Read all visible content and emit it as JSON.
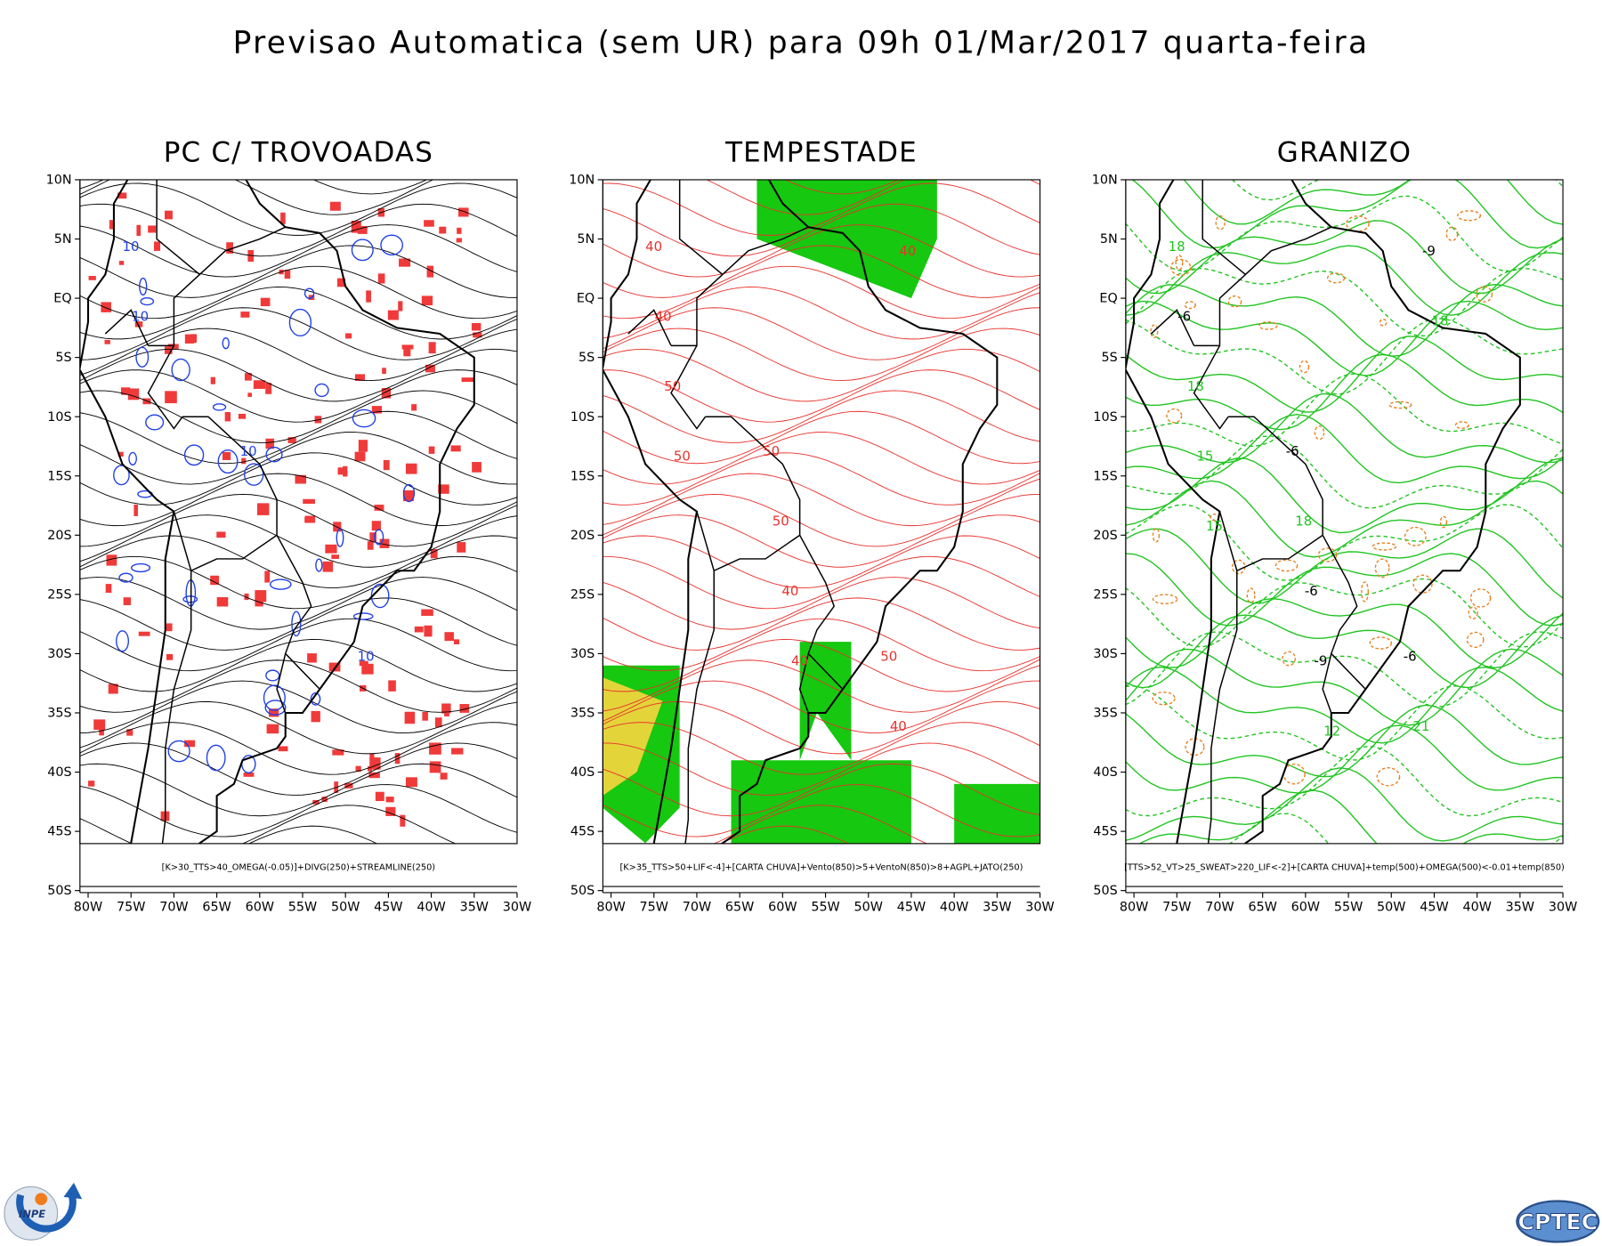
{
  "title": "Previsao Automatica (sem UR) para 09h 01/Mar/2017 quarta-feira",
  "panels": [
    {
      "title": "PC C/ TROVOADAS",
      "caption": "[K>30_TTS>40_OMEGA(-0.05)]+DIVG(250)+STREAMLINE(250)",
      "annotations": [
        "10",
        "10",
        "10",
        "10"
      ]
    },
    {
      "title": "TEMPESTADE",
      "caption": "[K>35_TTS>50+LIF<-4]+[CARTA CHUVA]+Vento(850)>5+VentoN(850)>8+AGPL+JATO(250)",
      "annotations": [
        "40",
        "50",
        "50",
        "40",
        "50",
        "40",
        "50",
        "40",
        "40",
        "50",
        "40"
      ]
    },
    {
      "title": "GRANIZO",
      "caption": "[TTS>52_VT>25_SWEAT>220_LIF<-2]+[CARTA CHUVA]+temp(500)+OMEGA(500)<-0.01+temp(850)",
      "annotations": [
        "18",
        "-6",
        "-6",
        "-6",
        "18",
        "21",
        "18",
        "-6",
        "-9",
        "15",
        "-9",
        "18",
        "15",
        "12"
      ]
    }
  ],
  "lat_labels": [
    "10N",
    "5N",
    "EQ",
    "5S",
    "10S",
    "15S",
    "20S",
    "25S",
    "30S",
    "35S",
    "40S",
    "45S",
    "50S"
  ],
  "lon_labels": [
    "80W",
    "75W",
    "70W",
    "65W",
    "60W",
    "55W",
    "50W",
    "45W",
    "40W",
    "35W",
    "30W"
  ],
  "logos": {
    "left": "INPE",
    "right": "CPTEC"
  }
}
